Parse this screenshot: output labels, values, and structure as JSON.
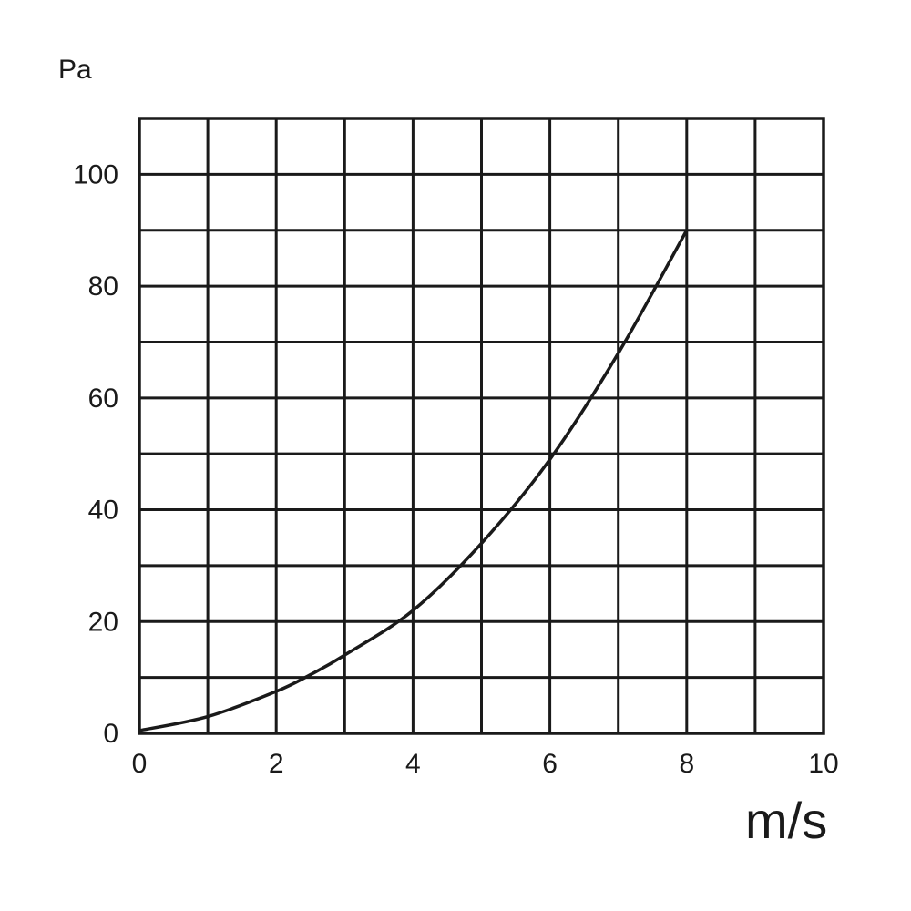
{
  "chart_data": {
    "type": "line",
    "title": "",
    "xlabel": "m/s",
    "ylabel": "Pa",
    "xlim": [
      0,
      10
    ],
    "ylim": [
      0,
      110
    ],
    "grid": true,
    "x_ticks": [
      "0",
      "2",
      "4",
      "6",
      "8",
      "10"
    ],
    "y_ticks": [
      "0",
      "20",
      "40",
      "60",
      "80",
      "100"
    ],
    "x_gridlines": [
      1,
      2,
      3,
      4,
      5,
      6,
      7,
      8,
      9
    ],
    "y_gridlines": [
      10,
      20,
      30,
      40,
      50,
      60,
      70,
      80,
      90,
      100
    ],
    "series": [
      {
        "x": [
          0,
          1,
          2,
          2.5,
          3,
          4,
          5,
          6,
          7,
          8
        ],
        "y": [
          0.5,
          3,
          7.5,
          10.5,
          14,
          22,
          34,
          49,
          68,
          90
        ]
      }
    ]
  }
}
